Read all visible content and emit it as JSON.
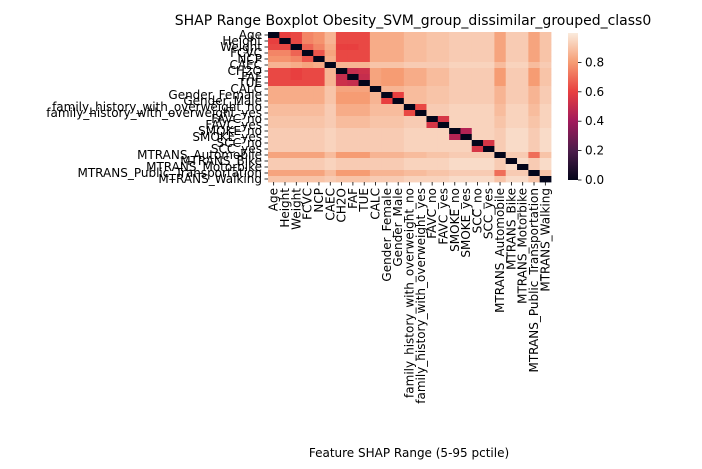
{
  "chart_data": {
    "type": "heatmap",
    "title": "SHAP Range Boxplot Obesity_SVM_group_dissimilar_grouped_class0",
    "xlabel": "Feature SHAP Range (5-95 pctile)",
    "ylabel": "",
    "features": [
      "Age",
      "Height",
      "Weight",
      "FCVC",
      "NCP",
      "CAEC",
      "CH2O",
      "FAF",
      "TUE",
      "CALC",
      "Gender_Female",
      "Gender_Male",
      "family_history_with_overweight_no",
      "family_history_with_overweight_yes",
      "FAVC_no",
      "FAVC_yes",
      "SMOKE_no",
      "SMOKE_yes",
      "SCC_no",
      "SCC_yes",
      "MTRANS_Automobile",
      "MTRANS_Bike",
      "MTRANS_Motorbike",
      "MTRANS_Public_Transportation",
      "MTRANS_Walking"
    ],
    "values": [
      [
        0.0,
        0.6,
        0.62,
        0.75,
        0.78,
        0.86,
        0.62,
        0.62,
        0.62,
        0.84,
        0.84,
        0.84,
        0.88,
        0.88,
        0.9,
        0.9,
        0.92,
        0.92,
        0.92,
        0.92,
        0.82,
        0.92,
        0.92,
        0.82,
        0.9
      ],
      [
        0.6,
        0.0,
        0.62,
        0.75,
        0.78,
        0.86,
        0.62,
        0.62,
        0.62,
        0.84,
        0.84,
        0.84,
        0.88,
        0.88,
        0.9,
        0.9,
        0.92,
        0.92,
        0.92,
        0.92,
        0.82,
        0.92,
        0.92,
        0.82,
        0.9
      ],
      [
        0.62,
        0.62,
        0.0,
        0.68,
        0.75,
        0.84,
        0.6,
        0.6,
        0.62,
        0.84,
        0.84,
        0.84,
        0.88,
        0.88,
        0.9,
        0.9,
        0.92,
        0.92,
        0.92,
        0.92,
        0.82,
        0.92,
        0.92,
        0.82,
        0.9
      ],
      [
        0.75,
        0.75,
        0.68,
        0.0,
        0.65,
        0.82,
        0.62,
        0.62,
        0.62,
        0.84,
        0.84,
        0.84,
        0.88,
        0.88,
        0.9,
        0.9,
        0.92,
        0.92,
        0.92,
        0.92,
        0.82,
        0.92,
        0.92,
        0.82,
        0.9
      ],
      [
        0.78,
        0.78,
        0.75,
        0.65,
        0.0,
        0.84,
        0.62,
        0.62,
        0.62,
        0.84,
        0.84,
        0.84,
        0.88,
        0.88,
        0.9,
        0.9,
        0.92,
        0.92,
        0.92,
        0.92,
        0.82,
        0.92,
        0.92,
        0.82,
        0.9
      ],
      [
        0.86,
        0.86,
        0.84,
        0.82,
        0.84,
        0.0,
        0.86,
        0.86,
        0.86,
        0.9,
        0.9,
        0.9,
        0.92,
        0.92,
        0.92,
        0.92,
        0.94,
        0.94,
        0.94,
        0.94,
        0.88,
        0.94,
        0.94,
        0.88,
        0.92
      ],
      [
        0.62,
        0.62,
        0.6,
        0.62,
        0.62,
        0.86,
        0.0,
        0.5,
        0.52,
        0.82,
        0.8,
        0.8,
        0.84,
        0.84,
        0.88,
        0.88,
        0.92,
        0.92,
        0.92,
        0.92,
        0.8,
        0.92,
        0.92,
        0.8,
        0.9
      ],
      [
        0.62,
        0.62,
        0.6,
        0.62,
        0.62,
        0.86,
        0.5,
        0.0,
        0.5,
        0.82,
        0.8,
        0.8,
        0.84,
        0.84,
        0.88,
        0.88,
        0.92,
        0.92,
        0.92,
        0.92,
        0.8,
        0.92,
        0.92,
        0.8,
        0.9
      ],
      [
        0.62,
        0.62,
        0.62,
        0.62,
        0.62,
        0.86,
        0.52,
        0.5,
        0.0,
        0.82,
        0.8,
        0.8,
        0.84,
        0.84,
        0.88,
        0.88,
        0.92,
        0.92,
        0.92,
        0.92,
        0.8,
        0.92,
        0.92,
        0.8,
        0.9
      ],
      [
        0.84,
        0.84,
        0.84,
        0.84,
        0.84,
        0.9,
        0.82,
        0.82,
        0.82,
        0.0,
        0.86,
        0.86,
        0.88,
        0.88,
        0.9,
        0.9,
        0.92,
        0.92,
        0.92,
        0.92,
        0.86,
        0.92,
        0.92,
        0.86,
        0.92
      ],
      [
        0.84,
        0.84,
        0.84,
        0.84,
        0.84,
        0.9,
        0.8,
        0.8,
        0.8,
        0.86,
        0.0,
        0.6,
        0.88,
        0.88,
        0.9,
        0.9,
        0.92,
        0.92,
        0.92,
        0.92,
        0.86,
        0.92,
        0.92,
        0.86,
        0.92
      ],
      [
        0.84,
        0.84,
        0.84,
        0.84,
        0.84,
        0.9,
        0.8,
        0.8,
        0.8,
        0.86,
        0.6,
        0.0,
        0.88,
        0.88,
        0.9,
        0.9,
        0.92,
        0.92,
        0.92,
        0.92,
        0.86,
        0.92,
        0.92,
        0.86,
        0.92
      ],
      [
        0.88,
        0.88,
        0.88,
        0.88,
        0.88,
        0.92,
        0.84,
        0.84,
        0.84,
        0.88,
        0.88,
        0.88,
        0.0,
        0.62,
        0.92,
        0.92,
        0.94,
        0.94,
        0.94,
        0.94,
        0.88,
        0.94,
        0.94,
        0.88,
        0.94
      ],
      [
        0.88,
        0.88,
        0.88,
        0.88,
        0.88,
        0.92,
        0.84,
        0.84,
        0.84,
        0.88,
        0.88,
        0.88,
        0.62,
        0.0,
        0.92,
        0.92,
        0.94,
        0.94,
        0.94,
        0.94,
        0.88,
        0.94,
        0.94,
        0.88,
        0.94
      ],
      [
        0.9,
        0.9,
        0.9,
        0.9,
        0.9,
        0.92,
        0.88,
        0.88,
        0.88,
        0.9,
        0.9,
        0.9,
        0.92,
        0.92,
        0.0,
        0.55,
        0.94,
        0.94,
        0.94,
        0.94,
        0.9,
        0.94,
        0.94,
        0.9,
        0.94
      ],
      [
        0.9,
        0.9,
        0.9,
        0.9,
        0.9,
        0.92,
        0.88,
        0.88,
        0.88,
        0.9,
        0.9,
        0.9,
        0.92,
        0.92,
        0.55,
        0.0,
        0.94,
        0.94,
        0.94,
        0.94,
        0.9,
        0.94,
        0.94,
        0.9,
        0.94
      ],
      [
        0.92,
        0.92,
        0.92,
        0.92,
        0.92,
        0.94,
        0.92,
        0.92,
        0.92,
        0.92,
        0.92,
        0.92,
        0.94,
        0.94,
        0.94,
        0.94,
        0.0,
        0.45,
        0.94,
        0.94,
        0.92,
        0.96,
        0.96,
        0.92,
        0.96
      ],
      [
        0.92,
        0.92,
        0.92,
        0.92,
        0.92,
        0.94,
        0.92,
        0.92,
        0.92,
        0.92,
        0.92,
        0.92,
        0.94,
        0.94,
        0.94,
        0.94,
        0.45,
        0.0,
        0.94,
        0.94,
        0.92,
        0.96,
        0.96,
        0.92,
        0.96
      ],
      [
        0.92,
        0.92,
        0.92,
        0.92,
        0.92,
        0.94,
        0.92,
        0.92,
        0.92,
        0.92,
        0.92,
        0.92,
        0.94,
        0.94,
        0.94,
        0.94,
        0.94,
        0.94,
        0.0,
        0.55,
        0.92,
        0.96,
        0.96,
        0.92,
        0.96
      ],
      [
        0.92,
        0.92,
        0.92,
        0.92,
        0.92,
        0.94,
        0.92,
        0.92,
        0.92,
        0.92,
        0.92,
        0.92,
        0.94,
        0.94,
        0.94,
        0.94,
        0.94,
        0.94,
        0.55,
        0.0,
        0.92,
        0.96,
        0.96,
        0.92,
        0.96
      ],
      [
        0.82,
        0.82,
        0.82,
        0.82,
        0.82,
        0.88,
        0.8,
        0.8,
        0.8,
        0.86,
        0.86,
        0.86,
        0.88,
        0.88,
        0.9,
        0.9,
        0.92,
        0.92,
        0.92,
        0.92,
        0.0,
        0.92,
        0.92,
        0.7,
        0.9
      ],
      [
        0.92,
        0.92,
        0.92,
        0.92,
        0.92,
        0.94,
        0.92,
        0.92,
        0.92,
        0.92,
        0.92,
        0.92,
        0.94,
        0.94,
        0.94,
        0.94,
        0.96,
        0.96,
        0.96,
        0.96,
        0.92,
        0.0,
        0.96,
        0.92,
        0.96
      ],
      [
        0.92,
        0.92,
        0.92,
        0.92,
        0.92,
        0.94,
        0.92,
        0.92,
        0.92,
        0.92,
        0.92,
        0.92,
        0.94,
        0.94,
        0.94,
        0.94,
        0.96,
        0.96,
        0.96,
        0.96,
        0.92,
        0.96,
        0.0,
        0.92,
        0.96
      ],
      [
        0.82,
        0.82,
        0.82,
        0.82,
        0.82,
        0.88,
        0.8,
        0.8,
        0.8,
        0.86,
        0.86,
        0.86,
        0.88,
        0.88,
        0.9,
        0.9,
        0.92,
        0.92,
        0.92,
        0.92,
        0.7,
        0.92,
        0.92,
        0.0,
        0.9
      ],
      [
        0.9,
        0.9,
        0.9,
        0.9,
        0.9,
        0.92,
        0.9,
        0.9,
        0.9,
        0.92,
        0.92,
        0.92,
        0.94,
        0.94,
        0.94,
        0.94,
        0.96,
        0.96,
        0.96,
        0.96,
        0.9,
        0.96,
        0.96,
        0.9,
        0.0
      ]
    ],
    "vmin": 0.0,
    "vmax": 1.0,
    "colorbar": {
      "ticks": [
        0.0,
        0.2,
        0.4,
        0.6,
        0.8
      ],
      "tick_labels": [
        "0.0",
        "0.2",
        "0.4",
        "0.6",
        "0.8"
      ]
    },
    "colormap": [
      "#03051a",
      "#4c1d4b",
      "#a11a5b",
      "#e83f3f",
      "#f69c73",
      "#faebdd"
    ]
  }
}
